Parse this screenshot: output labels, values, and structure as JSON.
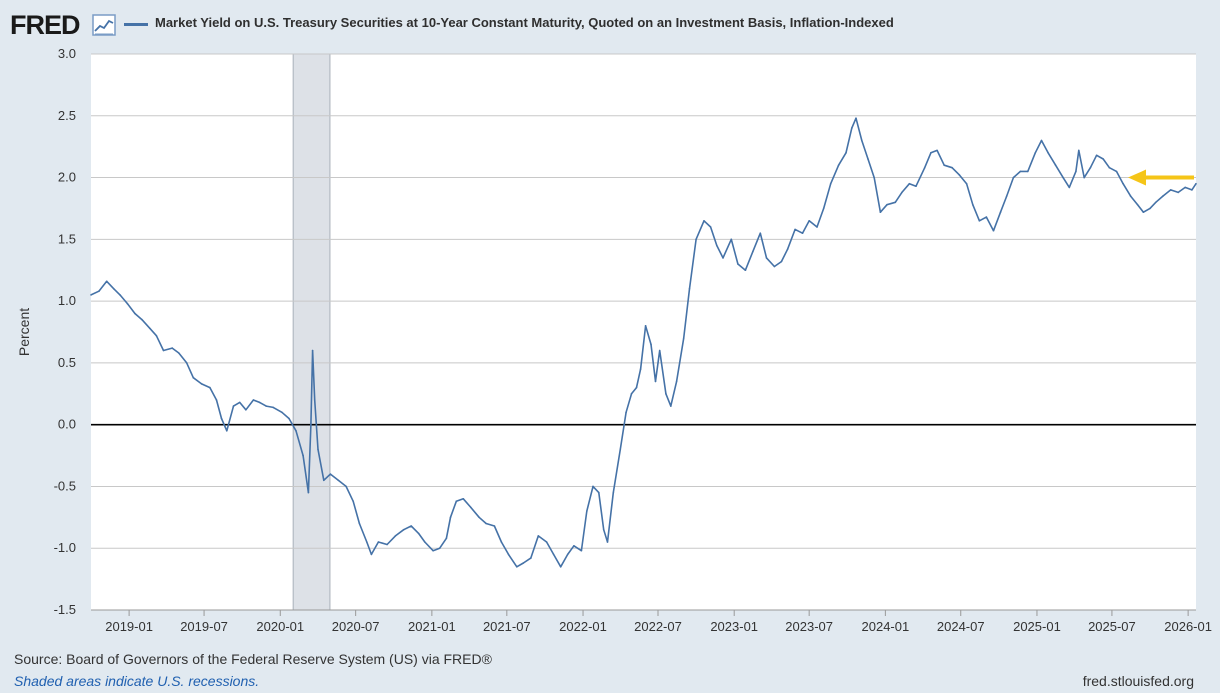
{
  "header": {
    "logo_text": "FRED",
    "logo_icon": "chart-line-icon",
    "series_title": "Market Yield on U.S. Treasury Securities at 10-Year Constant Maturity, Quoted on an Investment Basis, Inflation-Indexed"
  },
  "colors": {
    "series": "#4572a7",
    "background": "#e1e9f0",
    "plot_background": "#ffffff",
    "grid": "#c8c8c8",
    "zero_line": "#000000",
    "recession": "#dde1e7",
    "arrow": "#f5c518"
  },
  "footer": {
    "source": "Source: Board of Governors of the Federal Reserve System (US) via FRED®",
    "recession_note": "Shaded areas indicate U.S. recessions.",
    "url": "fred.stlouisfed.org"
  },
  "chart_data": {
    "type": "line",
    "ylabel": "Percent",
    "ylim": [
      -1.5,
      3.0
    ],
    "xlim": [
      "2018-10-01",
      "2026-01-20"
    ],
    "y_ticks": [
      "3.0",
      "2.5",
      "2.0",
      "1.5",
      "1.0",
      "0.5",
      "0.0",
      "-0.5",
      "-1.0",
      "-1.5"
    ],
    "x_ticks": [
      "2019-01",
      "2019-07",
      "2020-01",
      "2020-07",
      "2021-01",
      "2021-07",
      "2022-01",
      "2022-07",
      "2023-01",
      "2023-07",
      "2024-01",
      "2024-07",
      "2025-01",
      "2025-07",
      "2026-01"
    ],
    "recessions": [
      [
        "2020-02-01",
        "2020-04-30"
      ]
    ],
    "grid": true,
    "legend_position": "top-left",
    "annotation": "arrow pointing to latest value",
    "series": [
      {
        "name": "Market Yield on U.S. Treasury Securities at 10-Year Constant Maturity, Quoted on an Investment Basis, Inflation-Indexed",
        "points": [
          [
            "2018-10-01",
            1.05
          ],
          [
            "2018-10-20",
            1.08
          ],
          [
            "2018-11-08",
            1.16
          ],
          [
            "2018-11-25",
            1.1
          ],
          [
            "2018-12-10",
            1.05
          ],
          [
            "2018-12-28",
            0.98
          ],
          [
            "2019-01-15",
            0.9
          ],
          [
            "2019-02-01",
            0.85
          ],
          [
            "2019-02-20",
            0.78
          ],
          [
            "2019-03-08",
            0.72
          ],
          [
            "2019-03-25",
            0.6
          ],
          [
            "2019-04-15",
            0.62
          ],
          [
            "2019-05-01",
            0.58
          ],
          [
            "2019-05-20",
            0.5
          ],
          [
            "2019-06-05",
            0.38
          ],
          [
            "2019-06-25",
            0.33
          ],
          [
            "2019-07-15",
            0.3
          ],
          [
            "2019-07-31",
            0.2
          ],
          [
            "2019-08-12",
            0.05
          ],
          [
            "2019-08-25",
            -0.05
          ],
          [
            "2019-09-10",
            0.15
          ],
          [
            "2019-09-25",
            0.18
          ],
          [
            "2019-10-10",
            0.12
          ],
          [
            "2019-10-28",
            0.2
          ],
          [
            "2019-11-12",
            0.18
          ],
          [
            "2019-11-28",
            0.15
          ],
          [
            "2019-12-15",
            0.14
          ],
          [
            "2020-01-05",
            0.1
          ],
          [
            "2020-01-22",
            0.05
          ],
          [
            "2020-02-08",
            -0.05
          ],
          [
            "2020-02-25",
            -0.25
          ],
          [
            "2020-03-09",
            -0.55
          ],
          [
            "2020-03-15",
            0.0
          ],
          [
            "2020-03-19",
            0.6
          ],
          [
            "2020-03-24",
            0.2
          ],
          [
            "2020-04-01",
            -0.2
          ],
          [
            "2020-04-15",
            -0.45
          ],
          [
            "2020-05-01",
            -0.4
          ],
          [
            "2020-05-20",
            -0.45
          ],
          [
            "2020-06-08",
            -0.5
          ],
          [
            "2020-06-25",
            -0.62
          ],
          [
            "2020-07-10",
            -0.8
          ],
          [
            "2020-07-28",
            -0.95
          ],
          [
            "2020-08-08",
            -1.05
          ],
          [
            "2020-08-25",
            -0.95
          ],
          [
            "2020-09-15",
            -0.97
          ],
          [
            "2020-10-05",
            -0.9
          ],
          [
            "2020-10-25",
            -0.85
          ],
          [
            "2020-11-12",
            -0.82
          ],
          [
            "2020-11-30",
            -0.88
          ],
          [
            "2020-12-15",
            -0.95
          ],
          [
            "2021-01-04",
            -1.02
          ],
          [
            "2021-01-20",
            -1.0
          ],
          [
            "2021-02-05",
            -0.92
          ],
          [
            "2021-02-15",
            -0.75
          ],
          [
            "2021-03-01",
            -0.62
          ],
          [
            "2021-03-18",
            -0.6
          ],
          [
            "2021-04-05",
            -0.67
          ],
          [
            "2021-04-25",
            -0.75
          ],
          [
            "2021-05-12",
            -0.8
          ],
          [
            "2021-06-01",
            -0.82
          ],
          [
            "2021-06-18",
            -0.95
          ],
          [
            "2021-07-05",
            -1.05
          ],
          [
            "2021-07-25",
            -1.15
          ],
          [
            "2021-08-10",
            -1.12
          ],
          [
            "2021-08-28",
            -1.08
          ],
          [
            "2021-09-15",
            -0.9
          ],
          [
            "2021-10-05",
            -0.95
          ],
          [
            "2021-10-22",
            -1.05
          ],
          [
            "2021-11-08",
            -1.15
          ],
          [
            "2021-11-25",
            -1.05
          ],
          [
            "2021-12-10",
            -0.98
          ],
          [
            "2021-12-28",
            -1.02
          ],
          [
            "2022-01-10",
            -0.7
          ],
          [
            "2022-01-25",
            -0.5
          ],
          [
            "2022-02-08",
            -0.55
          ],
          [
            "2022-02-20",
            -0.85
          ],
          [
            "2022-03-01",
            -0.95
          ],
          [
            "2022-03-15",
            -0.55
          ],
          [
            "2022-04-01",
            -0.2
          ],
          [
            "2022-04-15",
            0.1
          ],
          [
            "2022-04-28",
            0.25
          ],
          [
            "2022-05-10",
            0.3
          ],
          [
            "2022-05-20",
            0.45
          ],
          [
            "2022-06-01",
            0.8
          ],
          [
            "2022-06-14",
            0.65
          ],
          [
            "2022-06-25",
            0.35
          ],
          [
            "2022-07-05",
            0.6
          ],
          [
            "2022-07-20",
            0.25
          ],
          [
            "2022-08-01",
            0.15
          ],
          [
            "2022-08-15",
            0.35
          ],
          [
            "2022-09-01",
            0.7
          ],
          [
            "2022-09-15",
            1.1
          ],
          [
            "2022-10-01",
            1.5
          ],
          [
            "2022-10-20",
            1.65
          ],
          [
            "2022-11-05",
            1.6
          ],
          [
            "2022-11-20",
            1.45
          ],
          [
            "2022-12-05",
            1.35
          ],
          [
            "2022-12-25",
            1.5
          ],
          [
            "2023-01-10",
            1.3
          ],
          [
            "2023-01-28",
            1.25
          ],
          [
            "2023-02-15",
            1.4
          ],
          [
            "2023-03-05",
            1.55
          ],
          [
            "2023-03-20",
            1.35
          ],
          [
            "2023-04-08",
            1.28
          ],
          [
            "2023-04-25",
            1.32
          ],
          [
            "2023-05-10",
            1.42
          ],
          [
            "2023-05-28",
            1.58
          ],
          [
            "2023-06-15",
            1.55
          ],
          [
            "2023-07-01",
            1.65
          ],
          [
            "2023-07-20",
            1.6
          ],
          [
            "2023-08-05",
            1.75
          ],
          [
            "2023-08-22",
            1.95
          ],
          [
            "2023-09-10",
            2.1
          ],
          [
            "2023-09-28",
            2.2
          ],
          [
            "2023-10-12",
            2.4
          ],
          [
            "2023-10-22",
            2.48
          ],
          [
            "2023-11-05",
            2.3
          ],
          [
            "2023-11-20",
            2.15
          ],
          [
            "2023-12-05",
            2.0
          ],
          [
            "2023-12-20",
            1.72
          ],
          [
            "2024-01-05",
            1.78
          ],
          [
            "2024-01-25",
            1.8
          ],
          [
            "2024-02-10",
            1.88
          ],
          [
            "2024-02-28",
            1.95
          ],
          [
            "2024-03-15",
            1.93
          ],
          [
            "2024-04-05",
            2.08
          ],
          [
            "2024-04-20",
            2.2
          ],
          [
            "2024-05-05",
            2.22
          ],
          [
            "2024-05-22",
            2.1
          ],
          [
            "2024-06-10",
            2.08
          ],
          [
            "2024-06-28",
            2.02
          ],
          [
            "2024-07-15",
            1.95
          ],
          [
            "2024-07-30",
            1.78
          ],
          [
            "2024-08-15",
            1.65
          ],
          [
            "2024-09-01",
            1.68
          ],
          [
            "2024-09-18",
            1.57
          ],
          [
            "2024-10-05",
            1.72
          ],
          [
            "2024-10-20",
            1.85
          ],
          [
            "2024-11-05",
            2.0
          ],
          [
            "2024-11-22",
            2.05
          ],
          [
            "2024-12-10",
            2.05
          ],
          [
            "2024-12-28",
            2.2
          ],
          [
            "2025-01-12",
            2.3
          ],
          [
            "2025-01-28",
            2.2
          ],
          [
            "2025-02-15",
            2.1
          ],
          [
            "2025-03-05",
            2.0
          ],
          [
            "2025-03-20",
            1.92
          ],
          [
            "2025-04-05",
            2.05
          ],
          [
            "2025-04-12",
            2.22
          ],
          [
            "2025-04-25",
            2.0
          ],
          [
            "2025-05-10",
            2.08
          ],
          [
            "2025-05-25",
            2.18
          ],
          [
            "2025-06-10",
            2.15
          ],
          [
            "2025-06-25",
            2.08
          ],
          [
            "2025-07-12",
            2.05
          ],
          [
            "2025-07-28",
            1.95
          ],
          [
            "2025-08-15",
            1.85
          ],
          [
            "2025-09-01",
            1.78
          ],
          [
            "2025-09-15",
            1.72
          ],
          [
            "2025-10-01",
            1.75
          ],
          [
            "2025-10-15",
            1.8
          ],
          [
            "2025-11-01",
            1.85
          ],
          [
            "2025-11-20",
            1.9
          ],
          [
            "2025-12-08",
            1.88
          ],
          [
            "2025-12-25",
            1.92
          ],
          [
            "2026-01-10",
            1.9
          ],
          [
            "2026-01-20",
            1.95
          ]
        ]
      }
    ]
  }
}
